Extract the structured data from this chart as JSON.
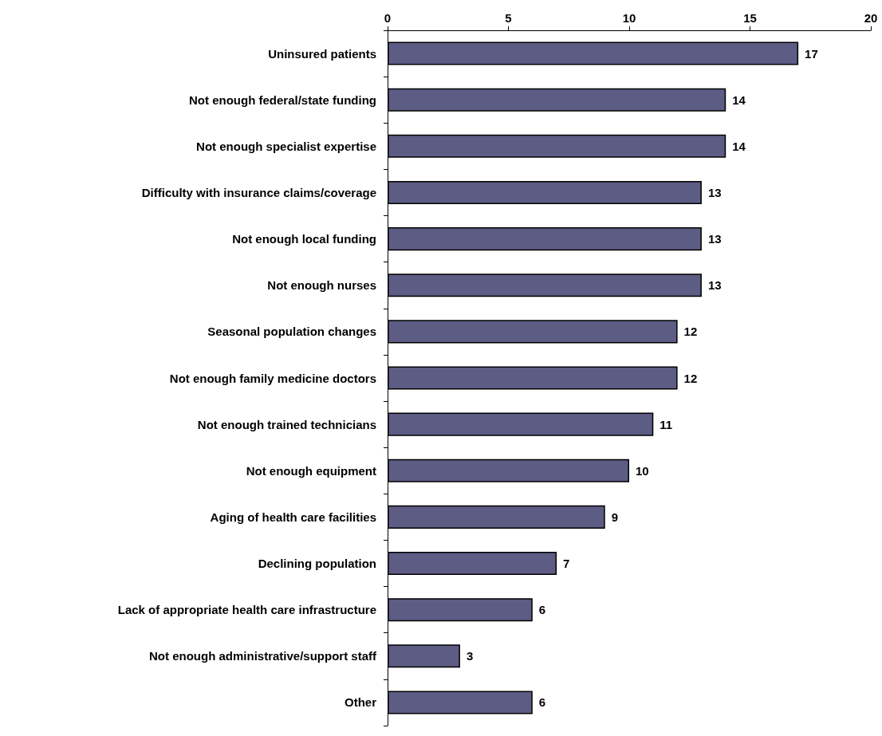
{
  "chart_data": {
    "type": "bar",
    "orientation": "horizontal",
    "categories": [
      "Uninsured patients",
      "Not enough federal/state funding",
      "Not enough specialist expertise",
      "Difficulty with insurance claims/coverage",
      "Not enough local funding",
      "Not enough nurses",
      "Seasonal population changes",
      "Not enough family medicine doctors",
      "Not enough trained technicians",
      "Not enough equipment",
      "Aging of health care facilities",
      "Declining population",
      "Lack of appropriate health care infrastructure",
      "Not enough administrative/support staff",
      "Other"
    ],
    "values": [
      17,
      14,
      14,
      13,
      13,
      13,
      12,
      12,
      11,
      10,
      9,
      7,
      6,
      3,
      6
    ],
    "color": "#5c5c84",
    "xlim": [
      0,
      20
    ],
    "xticks": [
      0,
      5,
      10,
      15,
      20
    ],
    "grid": false,
    "data_labels": true
  }
}
